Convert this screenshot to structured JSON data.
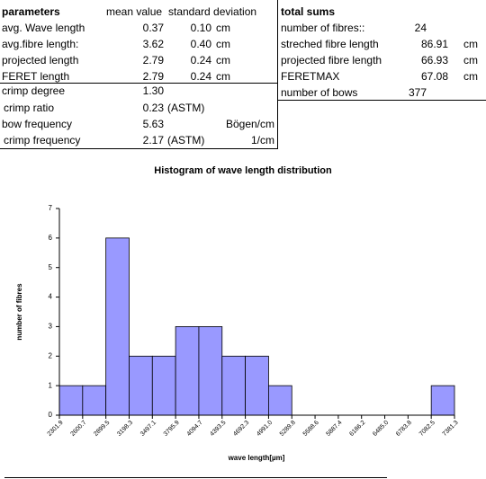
{
  "table": {
    "left_header": [
      "parameters",
      "mean value",
      "standard deviation"
    ],
    "left_rows": [
      [
        "avg. Wave length",
        "0.37",
        "0.10",
        "cm"
      ],
      [
        "avg.fibre length:",
        "3.62",
        "0.40",
        "cm"
      ],
      [
        "projected length",
        "2.79",
        "0.24",
        "cm"
      ],
      [
        "FERET length",
        "2.79",
        "0.24",
        "cm"
      ]
    ],
    "crimp_rows": [
      [
        "crimp degree",
        "1.30"
      ],
      [
        "crimp ratio",
        "0.23",
        "(ASTM)"
      ],
      [
        "bow frequency",
        "5.63",
        "Bögen/cm"
      ],
      [
        "crimp frequency",
        "2.17",
        "(ASTM)",
        "1/cm"
      ]
    ],
    "right_header": "total sums",
    "right_rows": [
      [
        "number of fibres::",
        "24"
      ],
      [
        "streched fibre length",
        "86.91",
        "cm"
      ],
      [
        "projected fibre length",
        "66.93",
        "cm"
      ],
      [
        "FERETMAX",
        "67.08",
        "cm"
      ],
      [
        "number of bows",
        "377"
      ]
    ]
  },
  "chart_data": {
    "type": "histogram",
    "title": "Histogram of wave length distribution",
    "x_label": "wave length[µm]",
    "y_label": "number of fibres",
    "bins": [
      2301.9,
      2600.7,
      2899.5,
      3198.3,
      3497.1,
      3795.9,
      4094.7,
      4393.5,
      4692.3,
      4991.0,
      5289.8,
      5588.6,
      5887.4,
      6186.2,
      6485.0,
      6783.8,
      7082.5,
      7381.3
    ],
    "values": [
      1,
      1,
      6,
      2,
      2,
      3,
      3,
      2,
      2,
      1,
      0,
      0,
      0,
      0,
      0,
      0,
      1
    ],
    "color": "#9999ff",
    "xlim": [
      2301.9,
      7381.3
    ],
    "xticks": [
      2301.9,
      2600.7,
      2899.5,
      3198.3,
      3497.1,
      3795.9,
      4094.7,
      4393.5,
      4692.3,
      {
        "value": 4991.0,
        "label": "4991.0"
      },
      5289.8,
      5588.6,
      5887.4,
      6186.2,
      {
        "value": 6485.0,
        "label": "6485.0"
      },
      6783.8,
      7082.5,
      7381.3
    ],
    "ylim": [
      0,
      7
    ],
    "yticks": [
      0,
      1,
      2,
      3,
      4,
      5,
      6,
      7
    ],
    "grid": false
  }
}
